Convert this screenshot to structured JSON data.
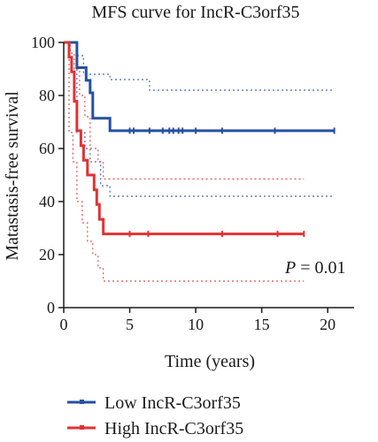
{
  "chart_data": {
    "type": "line",
    "title": "MFS curve for IncR-C3orf35",
    "xlabel": "Time (years)",
    "ylabel": "Matastasis-free survival",
    "xlim": [
      0,
      22
    ],
    "ylim": [
      0,
      100
    ],
    "x_ticks": [
      "0",
      "5",
      "10",
      "15",
      "20"
    ],
    "y_ticks": [
      "0",
      "20",
      "40",
      "60",
      "80",
      "100"
    ],
    "grid": false,
    "legend_position": "bottom-left",
    "annotation": {
      "p_label": "P",
      "p_value": " = 0.01"
    },
    "series": [
      {
        "name": "Low IncR-C3orf35",
        "color": "#2550a4",
        "step_points": [
          [
            0,
            100
          ],
          [
            1.0,
            100
          ],
          [
            1.0,
            90.5
          ],
          [
            1.7,
            90.5
          ],
          [
            1.7,
            85.7
          ],
          [
            2.0,
            85.7
          ],
          [
            2.0,
            81
          ],
          [
            2.2,
            81
          ],
          [
            2.2,
            71.4
          ],
          [
            3.5,
            71.4
          ],
          [
            3.5,
            66.7
          ],
          [
            20.5,
            66.7
          ]
        ],
        "censor_x": [
          5.0,
          5.3,
          6.5,
          7.5,
          8.0,
          8.3,
          8.7,
          9.0,
          10.0,
          12.0,
          16.0,
          20.5
        ],
        "ci_upper": [
          [
            0,
            100
          ],
          [
            1.0,
            100
          ],
          [
            1.0,
            95
          ],
          [
            1.5,
            95
          ],
          [
            1.5,
            88
          ],
          [
            3.5,
            88
          ],
          [
            3.5,
            86
          ],
          [
            6.5,
            86
          ],
          [
            6.5,
            82
          ],
          [
            20.5,
            82
          ]
        ],
        "ci_lower": [
          [
            0,
            100
          ],
          [
            1.0,
            100
          ],
          [
            1.0,
            66
          ],
          [
            1.6,
            66
          ],
          [
            1.6,
            60
          ],
          [
            2.0,
            60
          ],
          [
            2.0,
            55
          ],
          [
            2.8,
            55
          ],
          [
            2.8,
            46
          ],
          [
            3.5,
            46
          ],
          [
            3.5,
            42
          ],
          [
            20.5,
            42
          ]
        ]
      },
      {
        "name": "High IncR-C3orf35",
        "color": "#e23232",
        "step_points": [
          [
            0,
            100
          ],
          [
            0.4,
            100
          ],
          [
            0.4,
            94.4
          ],
          [
            0.6,
            94.4
          ],
          [
            0.6,
            88.9
          ],
          [
            0.8,
            88.9
          ],
          [
            0.8,
            77.8
          ],
          [
            1.0,
            77.8
          ],
          [
            1.0,
            66.7
          ],
          [
            1.3,
            66.7
          ],
          [
            1.3,
            61.1
          ],
          [
            1.5,
            61.1
          ],
          [
            1.5,
            55.6
          ],
          [
            1.8,
            55.6
          ],
          [
            1.8,
            50
          ],
          [
            2.3,
            50
          ],
          [
            2.3,
            44.4
          ],
          [
            2.5,
            44.4
          ],
          [
            2.5,
            38.9
          ],
          [
            2.7,
            38.9
          ],
          [
            2.7,
            33.3
          ],
          [
            3.0,
            33.3
          ],
          [
            3.0,
            27.8
          ],
          [
            18.2,
            27.8
          ]
        ],
        "censor_x": [
          5.0,
          6.4,
          12.0,
          16.2,
          18.2
        ],
        "ci_upper": [
          [
            0,
            100
          ],
          [
            0.5,
            100
          ],
          [
            0.5,
            96
          ],
          [
            0.8,
            96
          ],
          [
            0.8,
            90
          ],
          [
            1.2,
            90
          ],
          [
            1.2,
            80
          ],
          [
            1.6,
            80
          ],
          [
            1.6,
            72
          ],
          [
            2.0,
            72
          ],
          [
            2.0,
            60
          ],
          [
            2.6,
            60
          ],
          [
            2.6,
            55
          ],
          [
            3.0,
            55
          ],
          [
            3.0,
            48.5
          ],
          [
            18.2,
            48.5
          ]
        ],
        "ci_lower": [
          [
            0,
            100
          ],
          [
            0.4,
            100
          ],
          [
            0.4,
            66
          ],
          [
            0.7,
            66
          ],
          [
            0.7,
            55
          ],
          [
            1.0,
            55
          ],
          [
            1.0,
            40
          ],
          [
            1.4,
            40
          ],
          [
            1.4,
            32
          ],
          [
            1.8,
            32
          ],
          [
            1.8,
            25
          ],
          [
            2.2,
            25
          ],
          [
            2.2,
            20
          ],
          [
            2.6,
            20
          ],
          [
            2.6,
            15
          ],
          [
            3.0,
            15
          ],
          [
            3.0,
            10
          ],
          [
            18.2,
            10
          ]
        ]
      }
    ]
  }
}
